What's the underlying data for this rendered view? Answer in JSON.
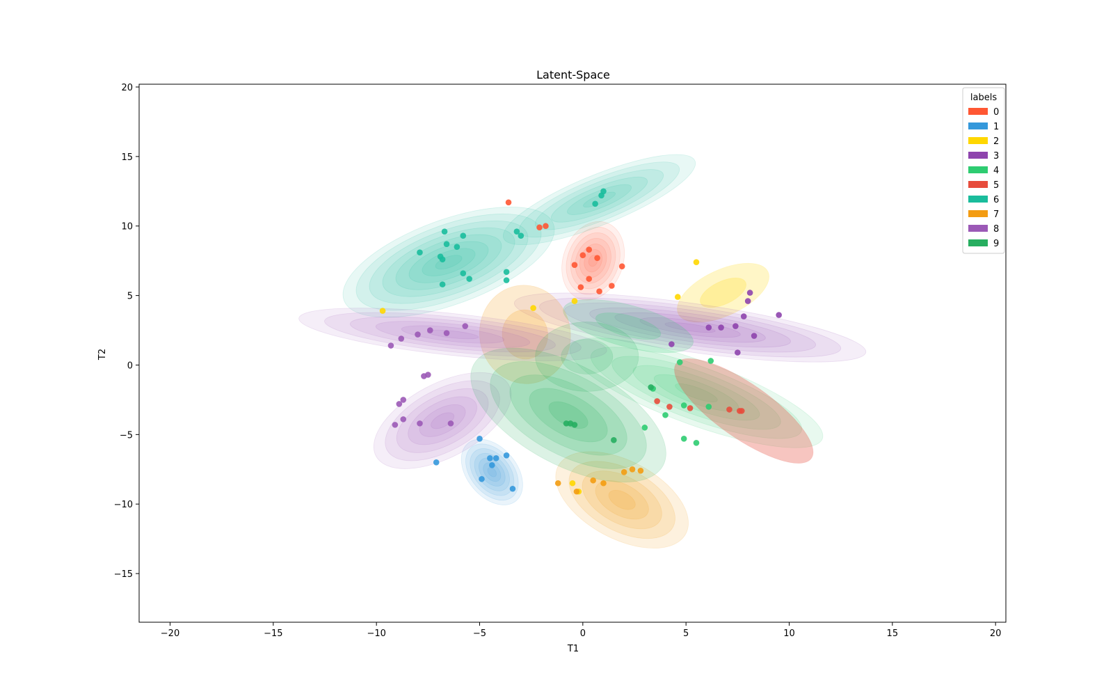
{
  "chart_data": {
    "type": "scatter",
    "title": "Latent-Space",
    "xlabel": "T1",
    "ylabel": "T2",
    "xlim": [
      -21.5,
      20.5
    ],
    "ylim": [
      -18.5,
      20.2
    ],
    "x_ticks": [
      -20,
      -15,
      -10,
      -5,
      0,
      5,
      10,
      15,
      20
    ],
    "y_ticks": [
      -15,
      -10,
      -5,
      0,
      5,
      10,
      15,
      20
    ],
    "x_tick_labels": [
      "−20",
      "−15",
      "−10",
      "−5",
      "0",
      "5",
      "10",
      "15",
      "20"
    ],
    "y_tick_labels": [
      "−15",
      "−10",
      "−5",
      "0",
      "5",
      "10",
      "15",
      "20"
    ],
    "grid": false,
    "legend": {
      "title": "labels",
      "placement": "top-right"
    },
    "series": [
      {
        "name": "0",
        "color": "#ff5733",
        "density": [
          {
            "cx": 0.5,
            "cy": 7.5,
            "sx": 2.9,
            "sy": 5.8,
            "angle": -20,
            "levels": 7,
            "alpha": 0.09
          }
        ],
        "points": [
          [
            -3.6,
            11.7
          ],
          [
            0.3,
            8.3
          ],
          [
            0.0,
            7.9
          ],
          [
            0.7,
            7.7
          ],
          [
            -0.4,
            7.2
          ],
          [
            1.9,
            7.1
          ],
          [
            0.3,
            6.2
          ],
          [
            -0.1,
            5.6
          ],
          [
            1.4,
            5.7
          ],
          [
            0.8,
            5.3
          ],
          [
            -2.1,
            9.9
          ],
          [
            -1.8,
            10.0
          ]
        ]
      },
      {
        "name": "1",
        "color": "#3498db",
        "density": [
          {
            "cx": -4.4,
            "cy": -7.7,
            "sx": 2.4,
            "sy": 5.4,
            "angle": 40,
            "levels": 7,
            "alpha": 0.1
          }
        ],
        "points": [
          [
            -4.5,
            -6.7
          ],
          [
            -4.2,
            -6.7
          ],
          [
            -4.4,
            -7.2
          ],
          [
            -4.9,
            -8.2
          ],
          [
            -7.1,
            -7.0
          ],
          [
            -3.4,
            -8.9
          ],
          [
            -3.7,
            -6.5
          ],
          [
            -5.0,
            -5.3
          ]
        ]
      },
      {
        "name": "2",
        "color": "#ffd700",
        "density": [
          {
            "cx": 6.8,
            "cy": 5.2,
            "sx": 4.8,
            "sy": 3.3,
            "angle": 25,
            "levels": 2,
            "alpha": 0.22
          }
        ],
        "points": [
          [
            -9.7,
            3.9
          ],
          [
            5.5,
            7.4
          ],
          [
            4.6,
            4.9
          ],
          [
            -0.4,
            4.6
          ],
          [
            -2.4,
            4.1
          ],
          [
            -0.2,
            -9.1
          ],
          [
            -0.5,
            -8.5
          ]
        ]
      },
      {
        "name": "3",
        "color": "#8e44ad",
        "density": [
          {
            "cx": 5.2,
            "cy": 2.7,
            "sx": 17.2,
            "sy": 3.5,
            "angle": -8,
            "levels": 7,
            "alpha": 0.09
          }
        ],
        "points": [
          [
            8.1,
            5.2
          ],
          [
            8.0,
            4.6
          ],
          [
            9.5,
            3.6
          ],
          [
            7.8,
            3.5
          ],
          [
            7.4,
            2.8
          ],
          [
            6.7,
            2.7
          ],
          [
            8.3,
            2.1
          ],
          [
            4.3,
            1.5
          ],
          [
            7.5,
            0.9
          ],
          [
            6.1,
            2.7
          ]
        ]
      },
      {
        "name": "4",
        "color": "#2ecc71",
        "density": [
          {
            "cx": 5.5,
            "cy": -2.0,
            "sx": 13.0,
            "sy": 4.6,
            "angle": -20,
            "levels": 6,
            "alpha": 0.11
          },
          {
            "cx": 2.2,
            "cy": 2.8,
            "sx": 6.5,
            "sy": 3.0,
            "angle": -15,
            "levels": 2,
            "alpha": 0.2
          }
        ],
        "points": [
          [
            4.7,
            0.2
          ],
          [
            6.2,
            0.3
          ],
          [
            3.4,
            -1.7
          ],
          [
            4.9,
            -2.9
          ],
          [
            4.0,
            -3.6
          ],
          [
            6.1,
            -3.0
          ],
          [
            4.9,
            -5.3
          ],
          [
            5.5,
            -5.6
          ],
          [
            3.0,
            -4.5
          ]
        ]
      },
      {
        "name": "5",
        "color": "#e74c3c",
        "density": [
          {
            "cx": 7.8,
            "cy": -3.3,
            "sx": 8.0,
            "sy": 3.9,
            "angle": -35,
            "levels": 1,
            "alpha": 0.32
          }
        ],
        "points": [
          [
            3.6,
            -2.6
          ],
          [
            5.2,
            -3.1
          ],
          [
            7.1,
            -3.2
          ],
          [
            7.7,
            -3.3
          ],
          [
            7.6,
            -3.3
          ],
          [
            4.2,
            -3.0
          ]
        ]
      },
      {
        "name": "6",
        "color": "#1abc9c",
        "density": [
          {
            "cx": -6.5,
            "cy": 7.4,
            "sx": 10.8,
            "sy": 6.1,
            "angle": 20,
            "levels": 8,
            "alpha": 0.1
          },
          {
            "cx": 0.8,
            "cy": 11.9,
            "sx": 10.0,
            "sy": 3.6,
            "angle": 22,
            "levels": 6,
            "alpha": 0.1
          }
        ],
        "points": [
          [
            -6.7,
            9.6
          ],
          [
            -5.8,
            9.3
          ],
          [
            -6.6,
            8.7
          ],
          [
            -6.1,
            8.5
          ],
          [
            -7.9,
            8.1
          ],
          [
            -6.9,
            7.8
          ],
          [
            -6.8,
            7.6
          ],
          [
            -5.8,
            6.6
          ],
          [
            -5.5,
            6.2
          ],
          [
            -3.7,
            6.7
          ],
          [
            -3.7,
            6.1
          ],
          [
            0.9,
            12.2
          ],
          [
            1.0,
            12.5
          ],
          [
            0.6,
            11.6
          ],
          [
            -6.8,
            5.8
          ],
          [
            -3.0,
            9.3
          ],
          [
            -3.2,
            9.6
          ]
        ]
      },
      {
        "name": "7",
        "color": "#f39c12",
        "density": [
          {
            "cx": 1.9,
            "cy": -9.7,
            "sx": 7.0,
            "sy": 5.6,
            "angle": -28,
            "levels": 5,
            "alpha": 0.14
          },
          {
            "cx": -2.8,
            "cy": 2.2,
            "sx": 4.4,
            "sy": 7.1,
            "angle": 10,
            "levels": 2,
            "alpha": 0.2
          }
        ],
        "points": [
          [
            -0.3,
            -9.1
          ],
          [
            1.0,
            -8.5
          ],
          [
            2.4,
            -7.5
          ],
          [
            2.0,
            -7.7
          ],
          [
            -1.2,
            -8.5
          ],
          [
            0.5,
            -8.3
          ],
          [
            2.8,
            -7.6
          ]
        ]
      },
      {
        "name": "8",
        "color": "#9b59b6",
        "density": [
          {
            "cx": -6.3,
            "cy": 2.2,
            "sx": 15.0,
            "sy": 3.0,
            "angle": -6,
            "levels": 6,
            "alpha": 0.1
          },
          {
            "cx": -6.8,
            "cy": -4.0,
            "sx": 7.3,
            "sy": 5.3,
            "angle": 28,
            "levels": 6,
            "alpha": 0.1
          }
        ],
        "points": [
          [
            -9.3,
            1.4
          ],
          [
            -8.8,
            1.9
          ],
          [
            -8.0,
            2.2
          ],
          [
            -7.4,
            2.5
          ],
          [
            -6.6,
            2.3
          ],
          [
            -5.7,
            2.8
          ],
          [
            -7.7,
            -0.8
          ],
          [
            -7.5,
            -0.7
          ],
          [
            -8.7,
            -2.5
          ],
          [
            -8.9,
            -2.8
          ],
          [
            -7.9,
            -4.2
          ],
          [
            -8.7,
            -3.9
          ],
          [
            -9.1,
            -4.3
          ],
          [
            -6.4,
            -4.2
          ]
        ]
      },
      {
        "name": "9",
        "color": "#27ae60",
        "density": [
          {
            "cx": -0.7,
            "cy": -3.6,
            "sx": 10.4,
            "sy": 7.2,
            "angle": -28,
            "levels": 5,
            "alpha": 0.16
          },
          {
            "cx": 0.2,
            "cy": 0.6,
            "sx": 5.0,
            "sy": 5.0,
            "angle": 0,
            "levels": 2,
            "alpha": 0.16
          }
        ],
        "points": [
          [
            -0.8,
            -4.2
          ],
          [
            -0.6,
            -4.2
          ],
          [
            -0.4,
            -4.3
          ],
          [
            3.3,
            -1.6
          ],
          [
            1.5,
            -5.4
          ]
        ]
      }
    ]
  }
}
